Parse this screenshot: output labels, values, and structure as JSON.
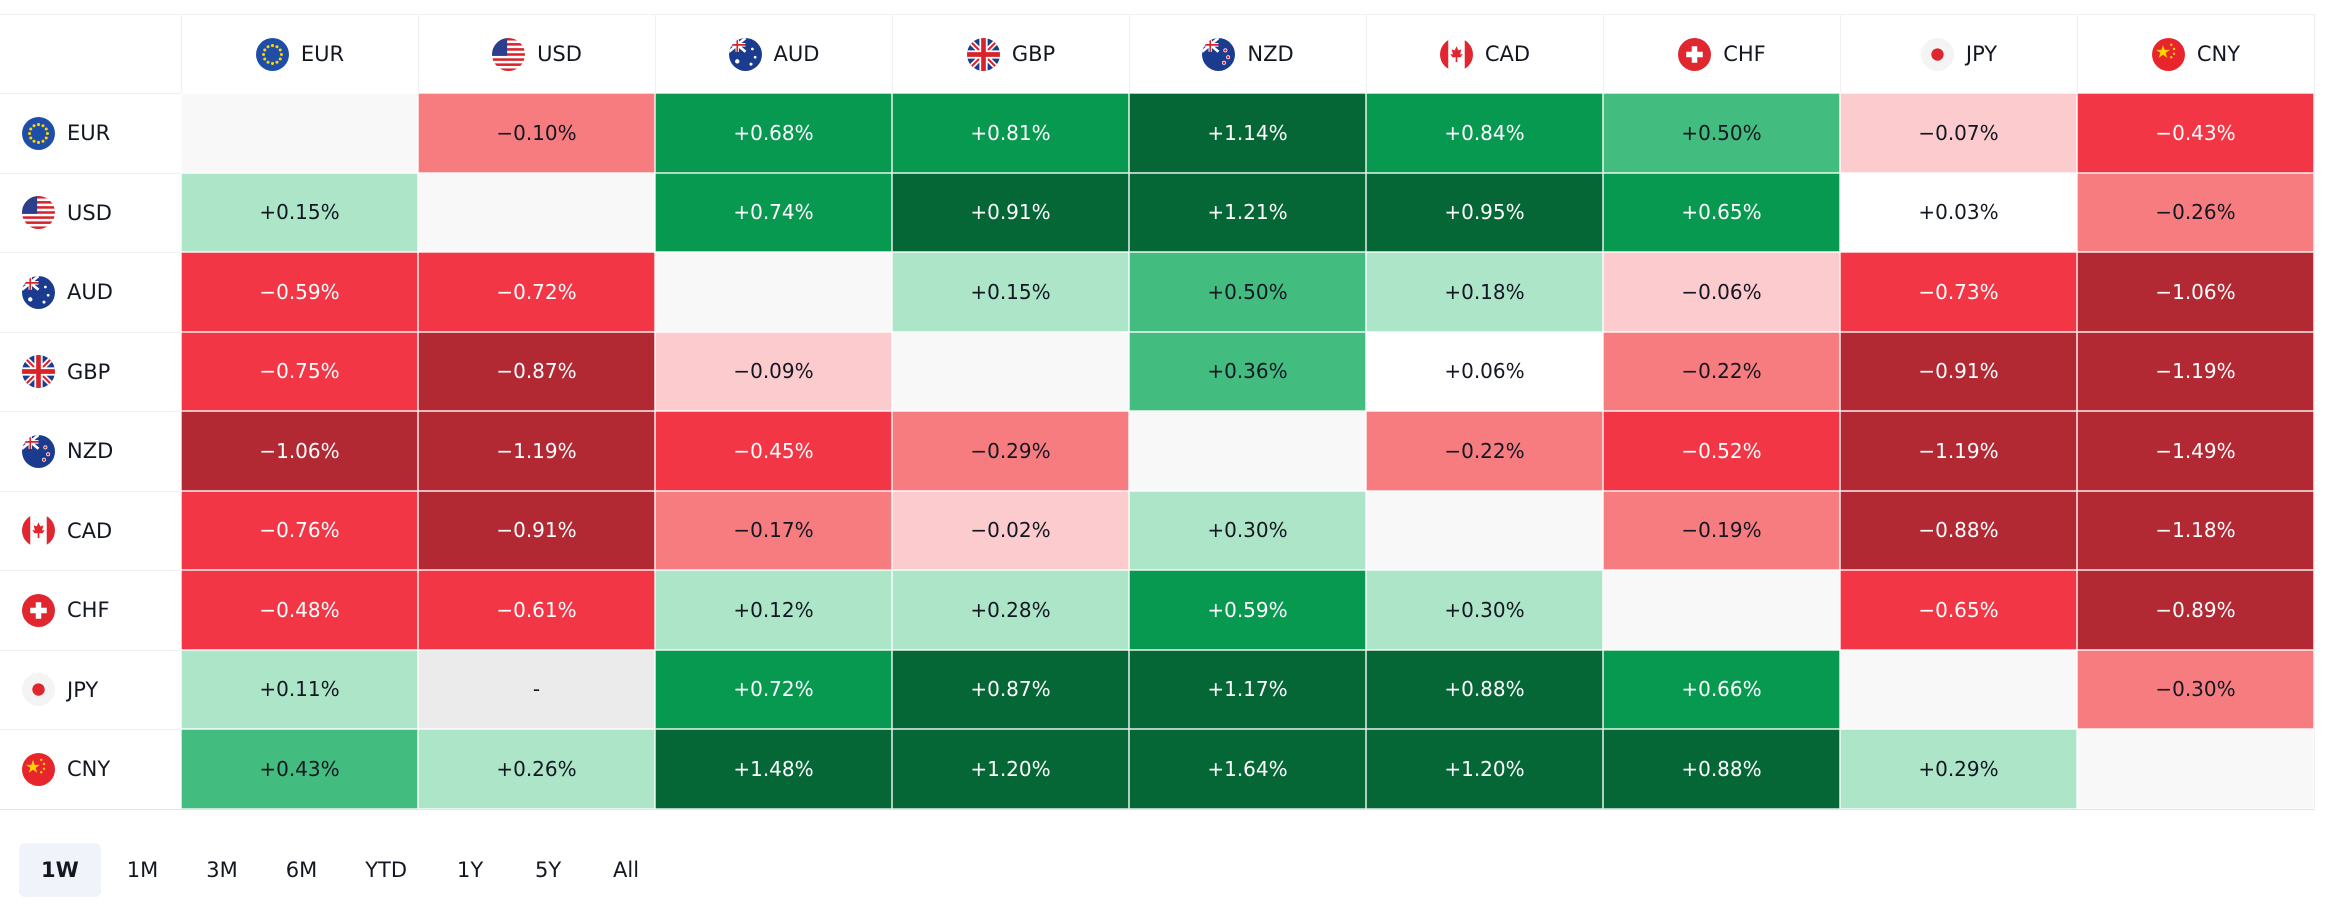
{
  "table": {
    "columns": [
      "EUR",
      "USD",
      "AUD",
      "GBP",
      "NZD",
      "CAD",
      "CHF",
      "JPY",
      "CNY"
    ],
    "rows": [
      {
        "label": "EUR",
        "cells": [
          null,
          "−0.10%",
          "+0.68%",
          "+0.81%",
          "+1.14%",
          "+0.84%",
          "+0.50%",
          "−0.07%",
          "−0.43%"
        ],
        "colors": [
          null,
          "#f77c80",
          "#089950",
          "#089950",
          "#056636",
          "#089950",
          "#42bd7f",
          "#fccbcd",
          "#f23645"
        ]
      },
      {
        "label": "USD",
        "cells": [
          "+0.15%",
          null,
          "+0.74%",
          "+0.91%",
          "+1.21%",
          "+0.95%",
          "+0.65%",
          "+0.03%",
          "−0.26%"
        ],
        "colors": [
          "#ace5c8",
          null,
          "#089950",
          "#056636",
          "#056636",
          "#056636",
          "#089950",
          "#ffffff",
          "#f77c80"
        ]
      },
      {
        "label": "AUD",
        "cells": [
          "−0.59%",
          "−0.72%",
          null,
          "+0.15%",
          "+0.50%",
          "+0.18%",
          "−0.06%",
          "−0.73%",
          "−1.06%"
        ],
        "colors": [
          "#f23645",
          "#f23645",
          null,
          "#ace5c8",
          "#42bd7f",
          "#ace5c8",
          "#fccbcd",
          "#f23645",
          "#b22833"
        ]
      },
      {
        "label": "GBP",
        "cells": [
          "−0.75%",
          "−0.87%",
          "−0.09%",
          null,
          "+0.36%",
          "+0.06%",
          "−0.22%",
          "−0.91%",
          "−1.19%"
        ],
        "colors": [
          "#f23645",
          "#b22833",
          "#fccbcd",
          null,
          "#42bd7f",
          "#ffffff",
          "#f77c80",
          "#b22833",
          "#b22833"
        ]
      },
      {
        "label": "NZD",
        "cells": [
          "−1.06%",
          "−1.19%",
          "−0.45%",
          "−0.29%",
          null,
          "−0.22%",
          "−0.52%",
          "−1.19%",
          "−1.49%"
        ],
        "colors": [
          "#b22833",
          "#b22833",
          "#f23645",
          "#f77c80",
          null,
          "#f77c80",
          "#f23645",
          "#b22833",
          "#b22833"
        ]
      },
      {
        "label": "CAD",
        "cells": [
          "−0.76%",
          "−0.91%",
          "−0.17%",
          "−0.02%",
          "+0.30%",
          null,
          "−0.19%",
          "−0.88%",
          "−1.18%"
        ],
        "colors": [
          "#f23645",
          "#b22833",
          "#f77c80",
          "#fccbcd",
          "#ace5c8",
          null,
          "#f77c80",
          "#b22833",
          "#b22833"
        ]
      },
      {
        "label": "CHF",
        "cells": [
          "−0.48%",
          "−0.61%",
          "+0.12%",
          "+0.28%",
          "+0.59%",
          "+0.30%",
          null,
          "−0.65%",
          "−0.89%"
        ],
        "colors": [
          "#f23645",
          "#f23645",
          "#ace5c8",
          "#ace5c8",
          "#089950",
          "#ace5c8",
          null,
          "#f23645",
          "#b22833"
        ]
      },
      {
        "label": "JPY",
        "cells": [
          "+0.11%",
          "-",
          "+0.72%",
          "+0.87%",
          "+1.17%",
          "+0.88%",
          "+0.66%",
          null,
          "−0.30%"
        ],
        "colors": [
          "#ace5c8",
          "#ebebeb",
          "#089950",
          "#056636",
          "#056636",
          "#056636",
          "#089950",
          null,
          "#f77c80"
        ]
      },
      {
        "label": "CNY",
        "cells": [
          "+0.43%",
          "+0.26%",
          "+1.48%",
          "+1.20%",
          "+1.64%",
          "+1.20%",
          "+0.88%",
          "+0.29%",
          null
        ],
        "colors": [
          "#42bd7f",
          "#ace5c8",
          "#056636",
          "#056636",
          "#056636",
          "#056636",
          "#056636",
          "#ace5c8",
          null
        ]
      }
    ]
  },
  "timeframes": [
    "1W",
    "1M",
    "3M",
    "6M",
    "YTD",
    "1Y",
    "5Y",
    "All"
  ],
  "selected": 0
}
